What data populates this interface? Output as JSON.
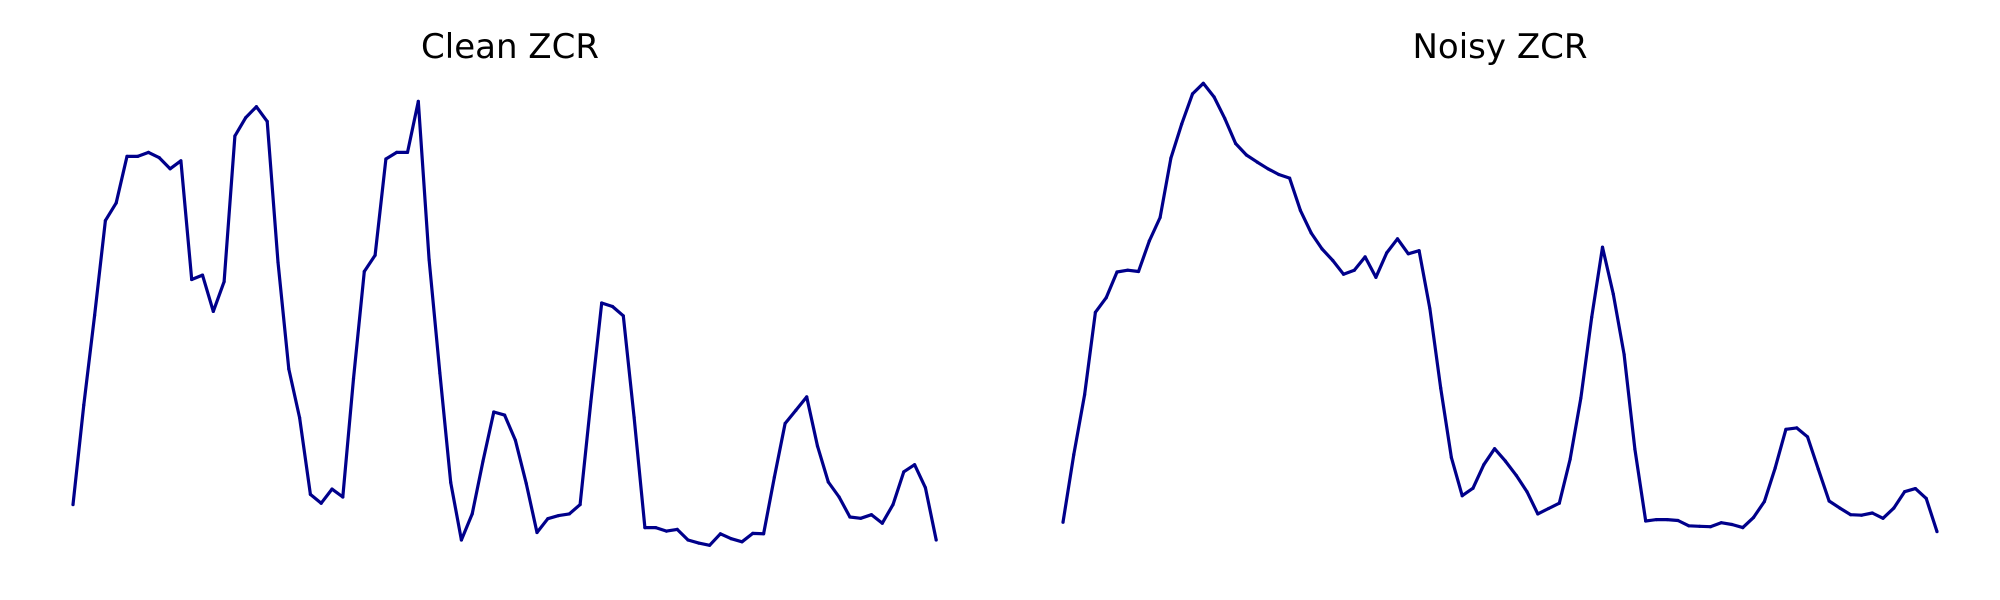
{
  "chart_data": [
    {
      "type": "line",
      "title": "Clean ZCR",
      "axes_visible": false,
      "grid": false,
      "legend": "none",
      "color": "#00008b",
      "ylim": [
        0,
        1
      ],
      "x": [
        0,
        1,
        2,
        3,
        4,
        5,
        6,
        7,
        8,
        9,
        10,
        11,
        12,
        13,
        14,
        15,
        16,
        17,
        18,
        19,
        20,
        21,
        22,
        23,
        24,
        25,
        26,
        27,
        28,
        29,
        30,
        31,
        32,
        33,
        34,
        35,
        36,
        37,
        38,
        39,
        40,
        41,
        42,
        43,
        44,
        45,
        46,
        47,
        48,
        49,
        50,
        51,
        52,
        53,
        54,
        55,
        56,
        57,
        58,
        59,
        60,
        61,
        62,
        63,
        64,
        65,
        66,
        67,
        68,
        69,
        70,
        71,
        72,
        73,
        74,
        75,
        76,
        77,
        78,
        79,
        80,
        81
      ],
      "values": [
        0.08,
        0.305,
        0.507,
        0.721,
        0.761,
        0.866,
        0.866,
        0.875,
        0.863,
        0.838,
        0.856,
        0.588,
        0.598,
        0.516,
        0.583,
        0.912,
        0.953,
        0.978,
        0.945,
        0.627,
        0.386,
        0.276,
        0.103,
        0.083,
        0.115,
        0.097,
        0.364,
        0.606,
        0.643,
        0.86,
        0.875,
        0.875,
        0.99,
        0.633,
        0.376,
        0.13,
        0.0,
        0.059,
        0.178,
        0.289,
        0.282,
        0.225,
        0.128,
        0.017,
        0.048,
        0.055,
        0.059,
        0.08,
        0.313,
        0.535,
        0.527,
        0.506,
        0.277,
        0.028,
        0.028,
        0.02,
        0.024,
        0.0,
        -0.007,
        -0.012,
        0.014,
        0.003,
        -0.004,
        0.015,
        0.014,
        0.142,
        0.263,
        0.293,
        0.323,
        0.212,
        0.131,
        0.097,
        0.052,
        0.049,
        0.057,
        0.038,
        0.08,
        0.154,
        0.17,
        0.118,
        0.0,
        null
      ]
    },
    {
      "type": "line",
      "title": "Noisy ZCR",
      "axes_visible": false,
      "grid": false,
      "legend": "none",
      "color": "#00008b",
      "ylim": [
        0,
        1
      ],
      "x": [
        0,
        1,
        2,
        3,
        4,
        5,
        6,
        7,
        8,
        9,
        10,
        11,
        12,
        13,
        14,
        15,
        16,
        17,
        18,
        19,
        20,
        21,
        22,
        23,
        24,
        25,
        26,
        27,
        28,
        29,
        30,
        31,
        32,
        33,
        34,
        35,
        36,
        37,
        38,
        39,
        40,
        41,
        42,
        43,
        44,
        45,
        46,
        47,
        48,
        49,
        50,
        51,
        52,
        53,
        54,
        55,
        56,
        57,
        58,
        59,
        60,
        61,
        62,
        63,
        64,
        65,
        66,
        67,
        68,
        69,
        70,
        71,
        72,
        73,
        74,
        75,
        76,
        77,
        78,
        79,
        80,
        81
      ],
      "values": [
        0.04,
        0.193,
        0.328,
        0.514,
        0.547,
        0.605,
        0.609,
        0.606,
        0.675,
        0.728,
        0.862,
        0.939,
        1.007,
        1.031,
        1.0,
        0.951,
        0.895,
        0.869,
        0.853,
        0.838,
        0.825,
        0.817,
        0.744,
        0.693,
        0.657,
        0.631,
        0.6,
        0.609,
        0.639,
        0.593,
        0.648,
        0.68,
        0.646,
        0.653,
        0.522,
        0.343,
        0.186,
        0.1,
        0.117,
        0.17,
        0.206,
        0.178,
        0.146,
        0.109,
        0.059,
        0.071,
        0.083,
        0.182,
        0.321,
        0.503,
        0.661,
        0.555,
        0.419,
        0.205,
        0.043,
        0.046,
        0.046,
        0.044,
        0.032,
        0.031,
        0.03,
        0.039,
        0.035,
        0.028,
        0.051,
        0.087,
        0.162,
        0.25,
        0.253,
        0.233,
        0.16,
        0.088,
        0.072,
        0.057,
        0.056,
        0.061,
        0.049,
        0.072,
        0.109,
        0.116,
        0.094,
        0.019
      ]
    }
  ]
}
